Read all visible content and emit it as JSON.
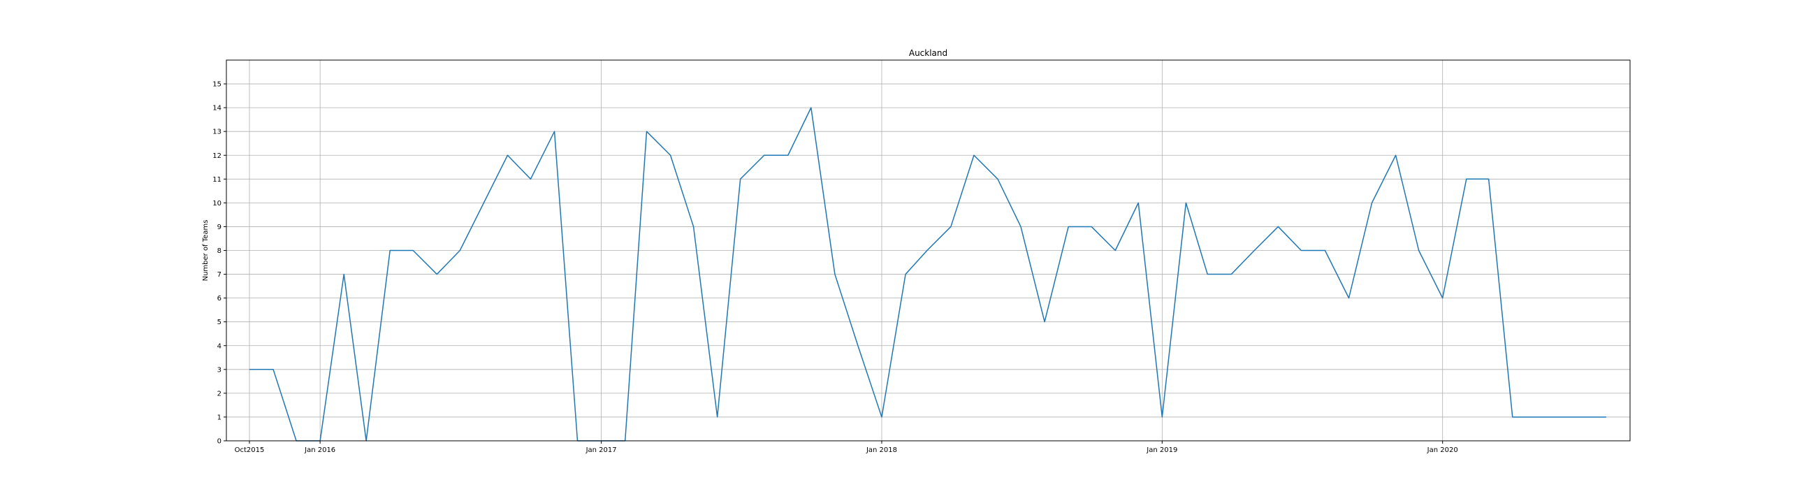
{
  "chart_data": {
    "type": "line",
    "title": "Auckland",
    "xlabel": "",
    "ylabel": "Number of Teams",
    "grid": true,
    "color": "#1f77b4",
    "ylim": [
      0,
      16
    ],
    "xlim": [
      "2015-09-01",
      "2020-09-01"
    ],
    "x_ticks": [
      {
        "date": "2015-10-01",
        "label": "Oct2015"
      },
      {
        "date": "2016-01-01",
        "label": "Jan 2016"
      },
      {
        "date": "2017-01-01",
        "label": "Jan 2017"
      },
      {
        "date": "2018-01-01",
        "label": "Jan 2018"
      },
      {
        "date": "2019-01-01",
        "label": "Jan 2019"
      },
      {
        "date": "2020-01-01",
        "label": "Jan 2020"
      }
    ],
    "y_ticks": [
      0,
      1,
      2,
      3,
      4,
      5,
      6,
      7,
      8,
      9,
      10,
      11,
      12,
      13,
      14,
      15
    ],
    "series": [
      {
        "x": [
          "2015-10",
          "2015-11",
          "2015-12",
          "2016-01",
          "2016-02",
          "2016-03",
          "2016-04",
          "2016-05",
          "2016-06",
          "2016-07",
          "2016-08",
          "2016-09",
          "2016-10",
          "2016-11",
          "2016-12",
          "2017-01",
          "2017-02",
          "2017-03",
          "2017-04",
          "2017-05",
          "2017-06",
          "2017-07",
          "2017-08",
          "2017-09",
          "2017-10",
          "2017-11",
          "2017-12",
          "2018-01",
          "2018-02",
          "2018-03",
          "2018-04",
          "2018-05",
          "2018-06",
          "2018-07",
          "2018-08",
          "2018-09",
          "2018-10",
          "2018-11",
          "2018-12",
          "2019-01",
          "2019-02",
          "2019-03",
          "2019-04",
          "2019-05",
          "2019-06",
          "2019-07",
          "2019-08",
          "2019-09",
          "2019-10",
          "2019-11",
          "2019-12",
          "2020-01",
          "2020-02",
          "2020-03",
          "2020-04",
          "2020-05",
          "2020-06",
          "2020-07",
          "2020-08"
        ],
        "values": [
          3,
          3,
          0,
          0,
          7,
          0,
          8,
          8,
          7,
          8,
          10,
          12,
          11,
          13,
          0,
          0,
          0,
          13,
          12,
          9,
          1,
          11,
          12,
          12,
          14,
          7,
          4,
          1,
          7,
          8,
          9,
          12,
          11,
          9,
          5,
          9,
          9,
          8,
          10,
          1,
          10,
          7,
          7,
          8,
          9,
          8,
          8,
          6,
          10,
          12,
          8,
          6,
          11,
          11,
          1,
          1,
          1,
          1,
          1
        ]
      }
    ]
  }
}
